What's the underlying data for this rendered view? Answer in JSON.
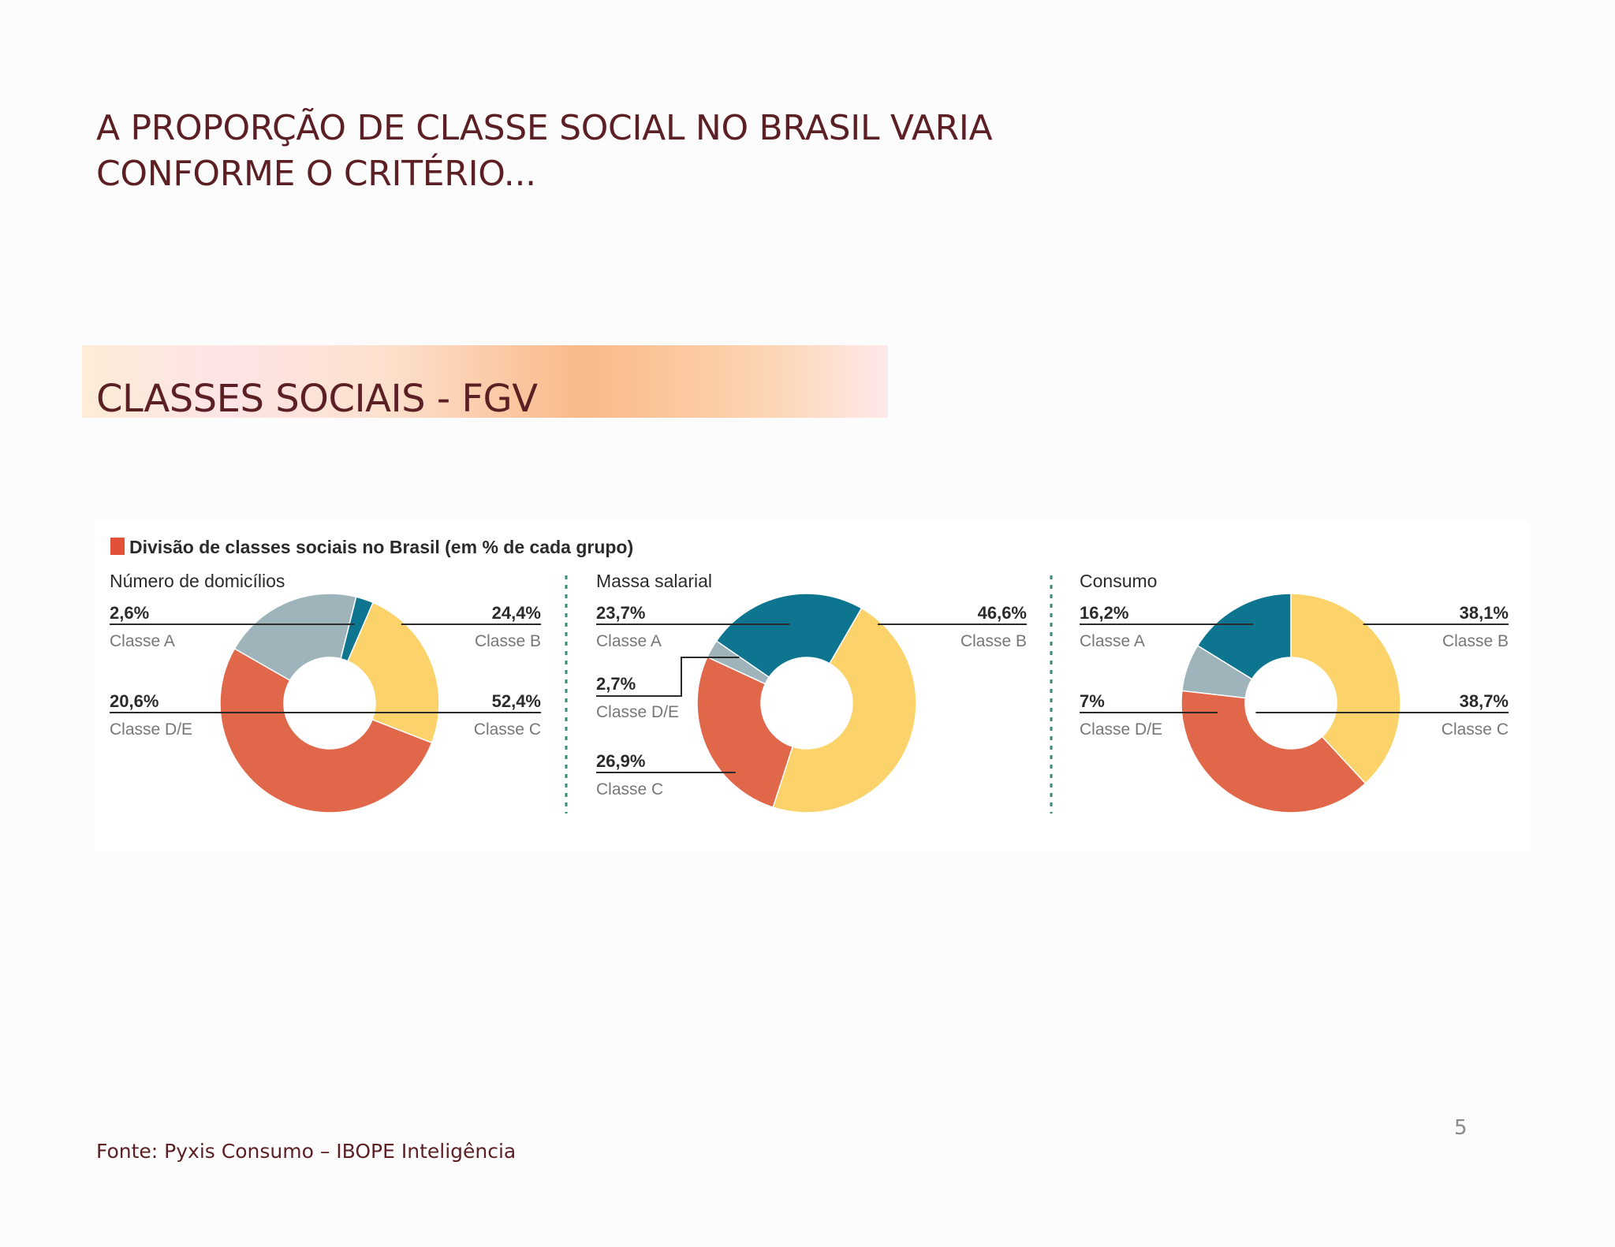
{
  "slide": {
    "title_line1": "A PROPORÇÃO DE CLASSE SOCIAL NO BRASIL VARIA",
    "title_line2": "CONFORME O CRITÉRIO...",
    "section_title": "CLASSES SOCIAIS - FGV",
    "source": "Fonte: Pyxis Consumo – IBOPE Inteligência",
    "page_number": "5"
  },
  "colors": {
    "classe_a": "#0e7590",
    "classe_b": "#fbd36a",
    "classe_c": "#e0674a",
    "classe_de": "#9eb3ba",
    "title_text": "#5b1f24",
    "marker": "#e2503a",
    "divider": "#3a8a78"
  },
  "chart_data": {
    "type": "donut",
    "title": "Divisão de classes sociais no Brasil (em % de cada grupo)",
    "charts": [
      {
        "name": "Número de domicílios",
        "slices": [
          {
            "label": "Classe A",
            "value": 2.6,
            "text": "2,6%",
            "color_key": "classe_a"
          },
          {
            "label": "Classe B",
            "value": 24.4,
            "text": "24,4%",
            "color_key": "classe_b"
          },
          {
            "label": "Classe C",
            "value": 52.4,
            "text": "52,4%",
            "color_key": "classe_c"
          },
          {
            "label": "Classe D/E",
            "value": 20.6,
            "text": "20,6%",
            "color_key": "classe_de"
          }
        ]
      },
      {
        "name": "Massa salarial",
        "slices": [
          {
            "label": "Classe A",
            "value": 23.7,
            "text": "23,7%",
            "color_key": "classe_a"
          },
          {
            "label": "Classe B",
            "value": 46.6,
            "text": "46,6%",
            "color_key": "classe_b"
          },
          {
            "label": "Classe C",
            "value": 26.9,
            "text": "26,9%",
            "color_key": "classe_c"
          },
          {
            "label": "Classe D/E",
            "value": 2.7,
            "text": "2,7%",
            "color_key": "classe_de"
          }
        ]
      },
      {
        "name": "Consumo",
        "slices": [
          {
            "label": "Classe A",
            "value": 16.2,
            "text": "16,2%",
            "color_key": "classe_a"
          },
          {
            "label": "Classe B",
            "value": 38.1,
            "text": "38,1%",
            "color_key": "classe_b"
          },
          {
            "label": "Classe C",
            "value": 38.7,
            "text": "38,7%",
            "color_key": "classe_c"
          },
          {
            "label": "Classe D/E",
            "value": 7,
            "text": "7%",
            "color_key": "classe_de"
          }
        ]
      }
    ]
  }
}
